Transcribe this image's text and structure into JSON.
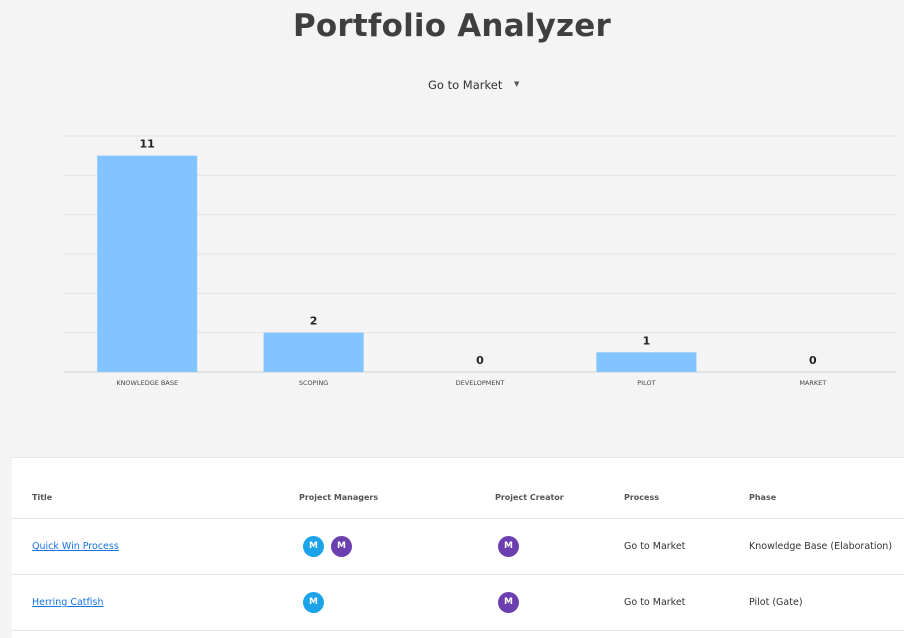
{
  "page": {
    "title": "Portfolio Analyzer"
  },
  "process_select": {
    "value": "Go to Market",
    "icon": "caret-down-icon"
  },
  "chart_data": {
    "type": "bar",
    "categories": [
      "KNOWLEDGE BASE",
      "SCOPING",
      "DEVELOPMENT",
      "PILOT",
      "MARKET"
    ],
    "values": [
      11,
      2,
      0,
      1,
      0
    ],
    "ylim": [
      0,
      12
    ],
    "grid": true,
    "bar_color": "#82c4ff",
    "title": "",
    "xlabel": "",
    "ylabel": ""
  },
  "table": {
    "headers": {
      "title": "Title",
      "managers": "Project Managers",
      "creator": "Project Creator",
      "process": "Process",
      "phase": "Phase"
    },
    "colors": {
      "avatar_blue": "#1aa3e8",
      "avatar_purple": "#6b3fb0",
      "link": "#1a73e8"
    },
    "rows": [
      {
        "title": "Quick Win Process",
        "managers": [
          {
            "initial": "M",
            "color": "#1aa3e8"
          },
          {
            "initial": "M",
            "color": "#6b3fb0"
          }
        ],
        "creator": {
          "initial": "M",
          "color": "#6b3fb0"
        },
        "process": "Go to Market",
        "phase": "Knowledge Base (Elaboration)"
      },
      {
        "title": "Herring Catfish",
        "managers": [
          {
            "initial": "M",
            "color": "#1aa3e8"
          }
        ],
        "creator": {
          "initial": "M",
          "color": "#6b3fb0"
        },
        "process": "Go to Market",
        "phase": "Pilot (Gate)"
      }
    ]
  }
}
